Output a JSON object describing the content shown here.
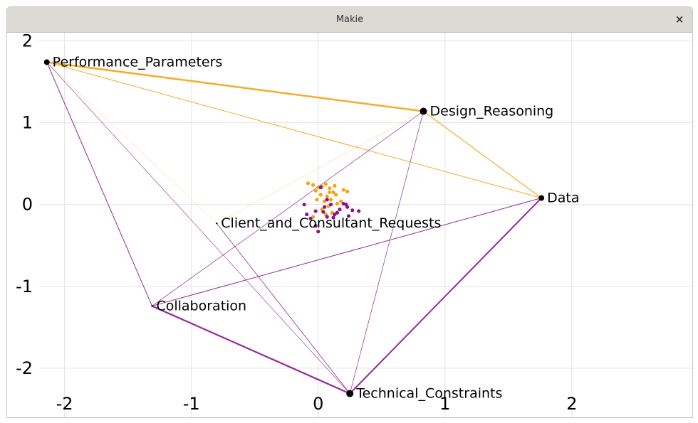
{
  "window": {
    "title": "Makie",
    "close_label": "×"
  },
  "chart_data": {
    "type": "scatter",
    "title": "",
    "xlabel": "",
    "ylabel": "",
    "xlim": [
      -2.2,
      2.95
    ],
    "ylim": [
      -2.6,
      2.1
    ],
    "grid": true,
    "x_ticks": [
      -2,
      -1,
      0,
      1,
      2
    ],
    "y_ticks": [
      -2,
      -1,
      0,
      1,
      2
    ],
    "x_tick_labels": [
      "-2",
      "-1",
      "0",
      "1",
      "2"
    ],
    "y_tick_labels": [
      "-2",
      "-1",
      "0",
      "1",
      "2"
    ],
    "colors": {
      "orange": "#f5a30f",
      "purple": "#8b128c",
      "node": "#000000",
      "grid": "#e3e3e3"
    },
    "nodes": [
      {
        "label": "Performance_Parameters",
        "x": -2.14,
        "y": 1.74,
        "size": 4
      },
      {
        "label": "Design_Reasoning",
        "x": 0.83,
        "y": 1.14,
        "size": 5
      },
      {
        "label": "Data",
        "x": 1.76,
        "y": 0.08,
        "size": 4
      },
      {
        "label": "Client_and_Consultant_Requests",
        "x": -0.8,
        "y": -0.23,
        "size": 1.2
      },
      {
        "label": "Collaboration",
        "x": -1.31,
        "y": -1.24,
        "size": 1.2
      },
      {
        "label": "Technical_Constraints",
        "x": 0.25,
        "y": -2.31,
        "size": 5
      }
    ],
    "edges": [
      {
        "from": 0,
        "to": 1,
        "color": "orange",
        "weight": 2.5
      },
      {
        "from": 0,
        "to": 2,
        "color": "orange",
        "weight": 1.0
      },
      {
        "from": 1,
        "to": 2,
        "color": "orange",
        "weight": 1.2
      },
      {
        "from": 1,
        "to": 3,
        "color": "orange",
        "weight": 0.5
      },
      {
        "from": 0,
        "to": 3,
        "color": "orange",
        "weight": 0.5
      },
      {
        "from": 0,
        "to": 4,
        "color": "purple",
        "weight": 1.0
      },
      {
        "from": 0,
        "to": 5,
        "color": "purple",
        "weight": 0.6
      },
      {
        "from": 4,
        "to": 5,
        "color": "purple",
        "weight": 2.2
      },
      {
        "from": 4,
        "to": 2,
        "color": "purple",
        "weight": 1.0
      },
      {
        "from": 4,
        "to": 1,
        "color": "purple",
        "weight": 0.7
      },
      {
        "from": 5,
        "to": 2,
        "color": "purple",
        "weight": 2.0
      },
      {
        "from": 5,
        "to": 1,
        "color": "purple",
        "weight": 0.7
      },
      {
        "from": 5,
        "to": 3,
        "color": "purple",
        "weight": 0.8
      }
    ],
    "series": [
      {
        "color": "orange",
        "points": [
          [
            -0.08,
            0.26
          ],
          [
            -0.04,
            0.24
          ],
          [
            0.03,
            0.22
          ],
          [
            0.06,
            0.25
          ],
          [
            0.09,
            0.2
          ],
          [
            0.12,
            0.15
          ],
          [
            0.14,
            0.12
          ],
          [
            0.2,
            0.18
          ],
          [
            0.23,
            0.16
          ],
          [
            0.13,
            0.23
          ],
          [
            -0.02,
            0.17
          ],
          [
            0.02,
            0.12
          ],
          [
            0.07,
            0.1
          ],
          [
            0.1,
            0.06
          ],
          [
            0.05,
            0.04
          ],
          [
            -0.01,
            0.06
          ],
          [
            0.08,
            -0.02
          ],
          [
            0.15,
            0.01
          ],
          [
            0.03,
            -0.06
          ],
          [
            0.11,
            -0.1
          ],
          [
            -0.04,
            -0.15
          ],
          [
            0.06,
            -0.12
          ],
          [
            0.18,
            0.04
          ],
          [
            0.0,
            0.21
          ],
          [
            0.09,
            0.15
          ]
        ]
      },
      {
        "color": "purple",
        "points": [
          [
            0.02,
            0.21
          ],
          [
            -0.11,
            0.0
          ],
          [
            0.07,
            0.06
          ],
          [
            0.1,
            0.0
          ],
          [
            0.05,
            -0.03
          ],
          [
            0.2,
            0.01
          ],
          [
            0.23,
            -0.03
          ],
          [
            0.32,
            -0.08
          ],
          [
            0.17,
            -0.06
          ],
          [
            0.13,
            -0.12
          ],
          [
            0.24,
            -0.14
          ],
          [
            -0.02,
            -0.08
          ],
          [
            -0.06,
            -0.17
          ],
          [
            -0.09,
            -0.12
          ],
          [
            0.04,
            -0.09
          ],
          [
            0.07,
            -0.15
          ],
          [
            0.12,
            -0.16
          ],
          [
            0.22,
            0.0
          ],
          [
            -0.02,
            -0.26
          ],
          [
            0.0,
            -0.33
          ],
          [
            0.27,
            -0.07
          ],
          [
            0.15,
            -0.1
          ]
        ]
      }
    ]
  }
}
